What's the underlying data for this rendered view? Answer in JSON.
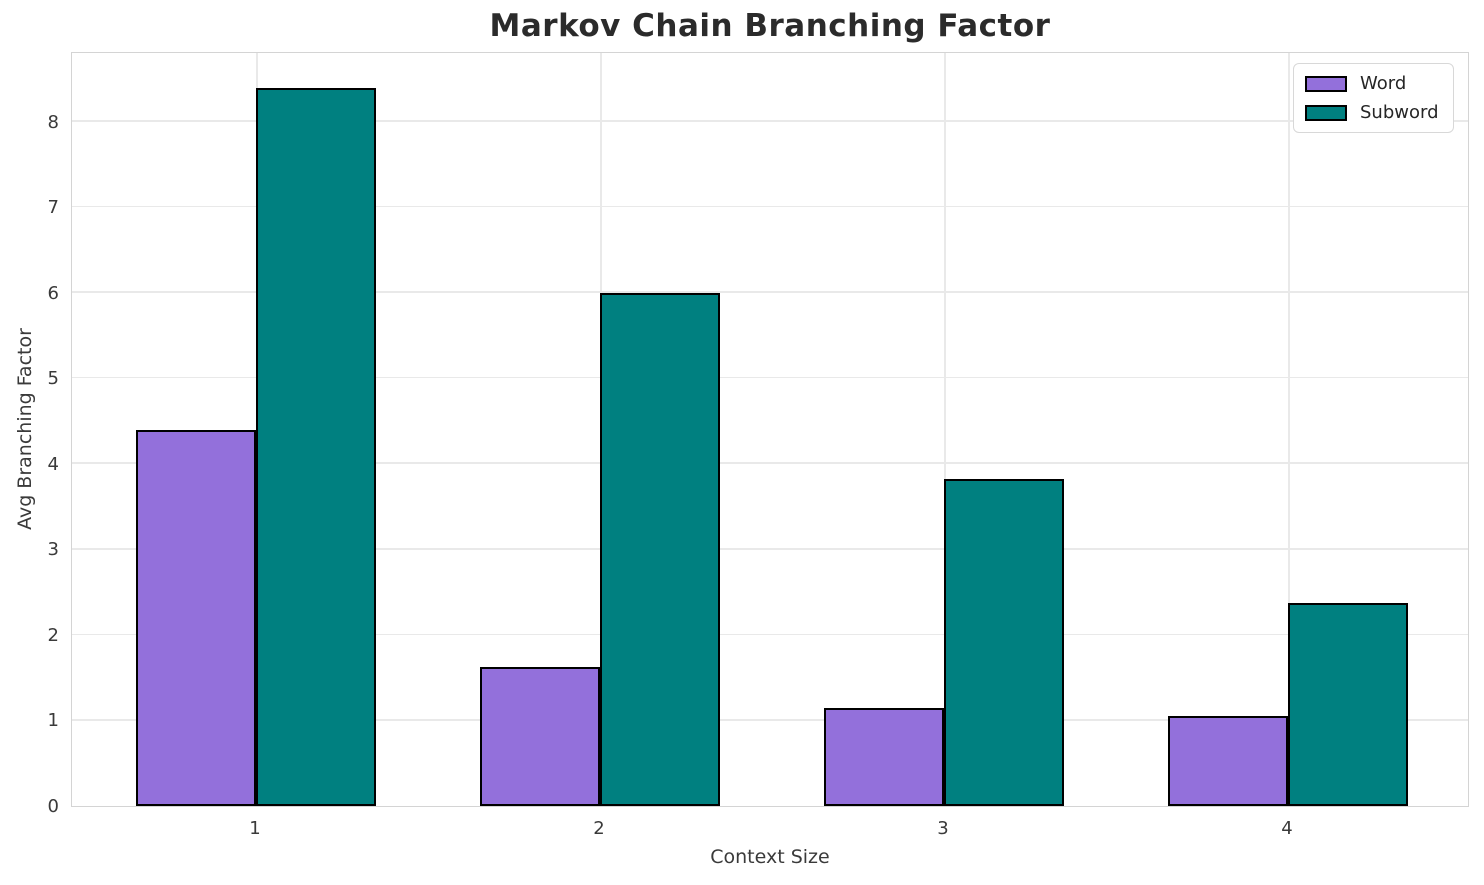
{
  "chart_data": {
    "type": "bar",
    "title": "Markov Chain Branching Factor",
    "xlabel": "Context Size",
    "ylabel": "Avg Branching Factor",
    "categories": [
      "1",
      "2",
      "3",
      "4"
    ],
    "series": [
      {
        "name": "Word",
        "color": "#9370DB",
        "values": [
          4.4,
          1.62,
          1.15,
          1.05
        ]
      },
      {
        "name": "Subword",
        "color": "#008080",
        "values": [
          8.4,
          6.0,
          3.82,
          2.38
        ]
      }
    ],
    "yticks": [
      0,
      1,
      2,
      3,
      4,
      5,
      6,
      7,
      8
    ],
    "ylim": [
      0,
      8.83
    ],
    "grid": true,
    "legend_position": "upper right",
    "bar_edge_color": "#000000",
    "background_color": "#ffffff"
  }
}
